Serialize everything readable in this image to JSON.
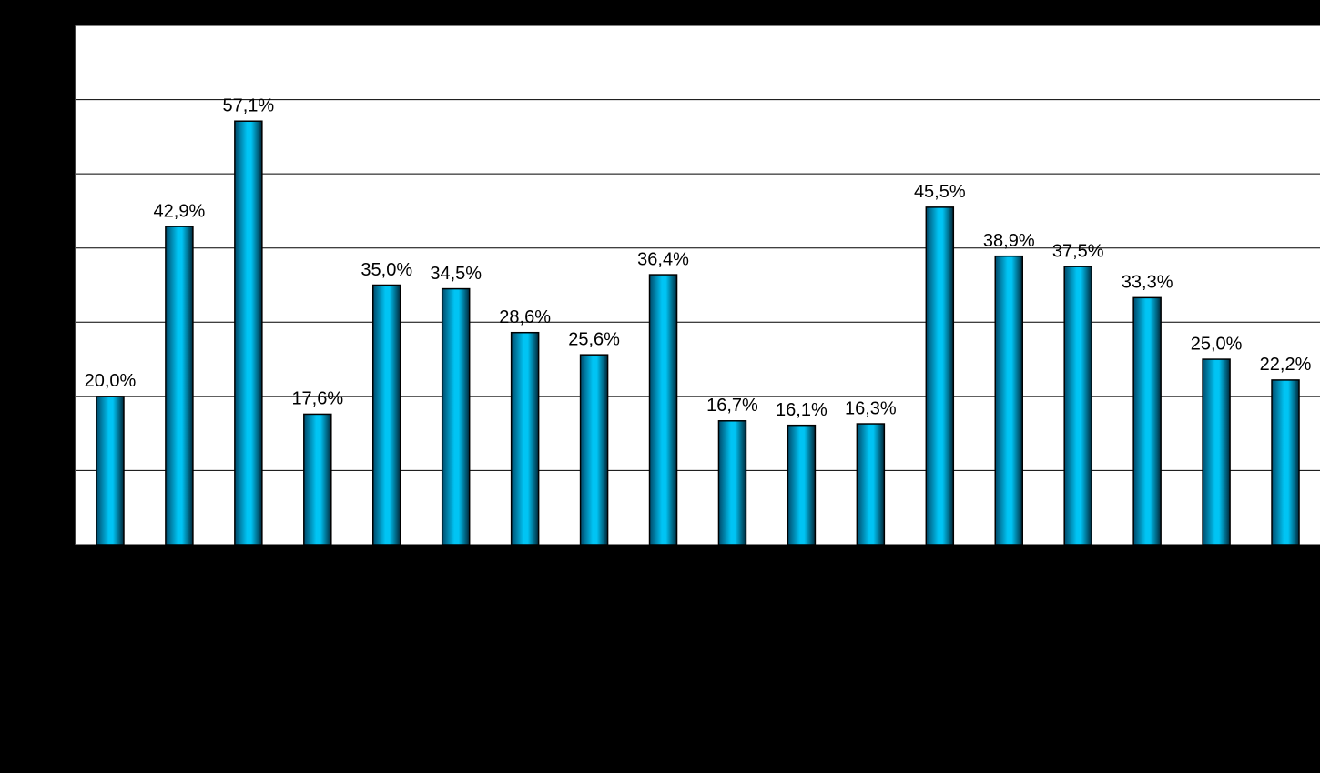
{
  "chart_data": {
    "type": "bar",
    "categories": [
      null,
      null,
      null,
      null,
      null,
      null,
      null,
      null,
      null,
      null,
      null,
      null,
      null,
      null,
      null,
      null,
      null,
      null
    ],
    "values": [
      20.0,
      42.9,
      57.1,
      17.6,
      35.0,
      34.5,
      28.6,
      25.6,
      36.4,
      16.7,
      16.1,
      16.3,
      45.5,
      38.9,
      37.5,
      33.3,
      25.0,
      22.2
    ],
    "value_labels": [
      "20,0%",
      "42,9%",
      "57,1%",
      "17,6%",
      "35,0%",
      "34,5%",
      "28,6%",
      "25,6%",
      "36,4%",
      "16,7%",
      "16,1%",
      "16,3%",
      "45,5%",
      "38,9%",
      "37,5%",
      "33,3%",
      "25,0%",
      "22,2%"
    ],
    "color": "#00c4f4",
    "ylim": [
      0,
      70
    ],
    "yticks": [
      0,
      10,
      20,
      30,
      40,
      50,
      60,
      70
    ],
    "grid": true
  }
}
